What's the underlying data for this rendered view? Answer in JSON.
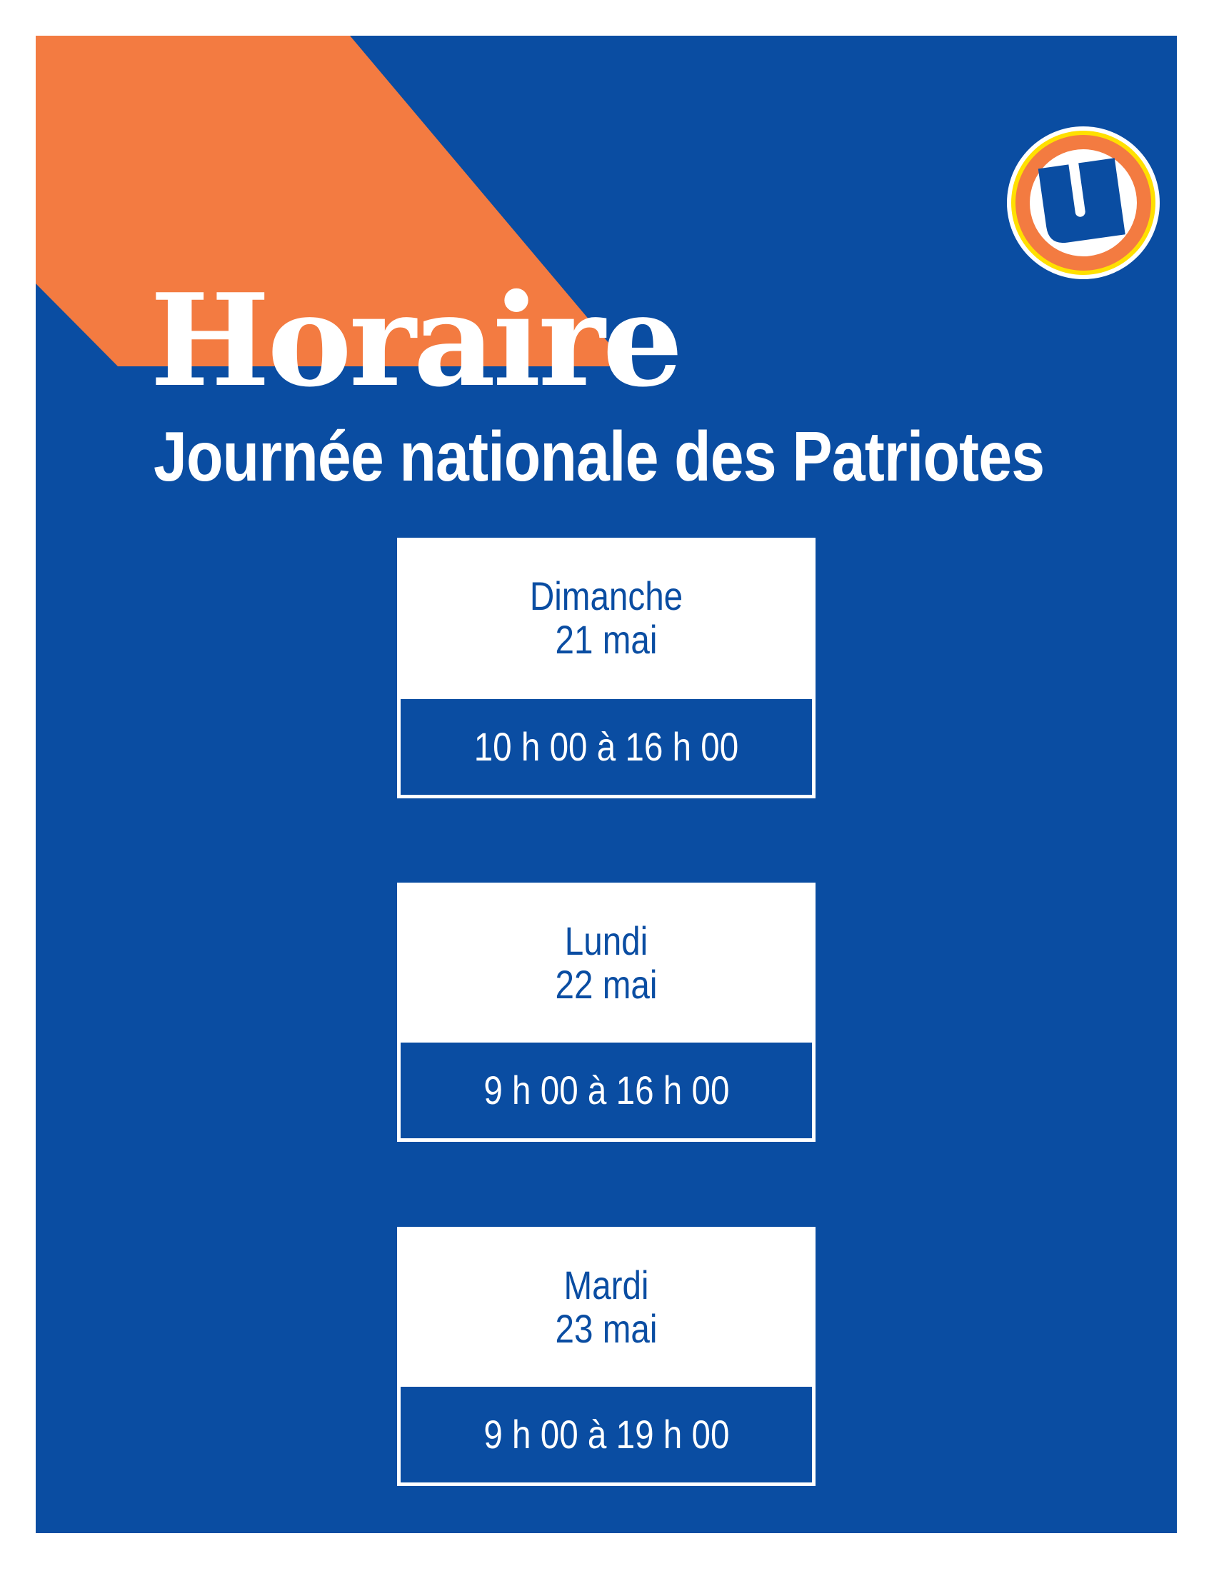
{
  "header": {
    "title": "Horaire",
    "subtitle": "Journée nationale des Patriotes"
  },
  "logo": {
    "letter": "U",
    "name": "logo-u"
  },
  "colors": {
    "background": "#0a4da2",
    "accent": "#f37b41",
    "logo_ring": "#ffe000",
    "text": "#ffffff"
  },
  "schedule": [
    {
      "day": "Dimanche",
      "date": "21 mai",
      "hours": "10 h 00 à 16 h 00"
    },
    {
      "day": "Lundi",
      "date": "22 mai",
      "hours": "9 h 00 à 16 h 00"
    },
    {
      "day": "Mardi",
      "date": "23 mai",
      "hours": "9 h 00 à 19 h 00"
    }
  ]
}
